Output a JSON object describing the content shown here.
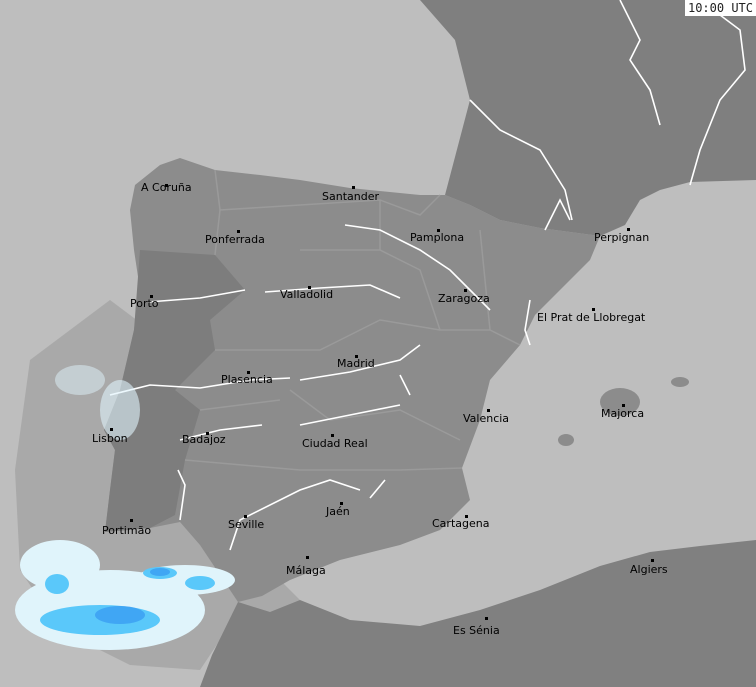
{
  "timestamp": "10:00 UTC",
  "colors": {
    "sea": "#bebebe",
    "land": "#8c8c8c",
    "foreign_land": "#808080",
    "coverage": "#a6a6a6",
    "rivers": "#ffffff",
    "rain_light": "#e0f4fb",
    "rain_moderate": "#5ac8fa",
    "rain_heavy": "#2f8ff0"
  },
  "cities": [
    {
      "name": "A Coruña"
    },
    {
      "name": "Santander"
    },
    {
      "name": "Ponferrada"
    },
    {
      "name": "Pamplona"
    },
    {
      "name": "Perpignan"
    },
    {
      "name": "Porto"
    },
    {
      "name": "Valladolid"
    },
    {
      "name": "Zaragoza"
    },
    {
      "name": "El Prat de Llobregat"
    },
    {
      "name": "Madrid"
    },
    {
      "name": "Plasencia"
    },
    {
      "name": "Majorca"
    },
    {
      "name": "Valencia"
    },
    {
      "name": "Lisbon"
    },
    {
      "name": "Badajoz"
    },
    {
      "name": "Ciudad Real"
    },
    {
      "name": "Jaén"
    },
    {
      "name": "Portimão"
    },
    {
      "name": "Seville"
    },
    {
      "name": "Cartagena"
    },
    {
      "name": "Málaga"
    },
    {
      "name": "Algiers"
    },
    {
      "name": "Es Sénia"
    }
  ]
}
